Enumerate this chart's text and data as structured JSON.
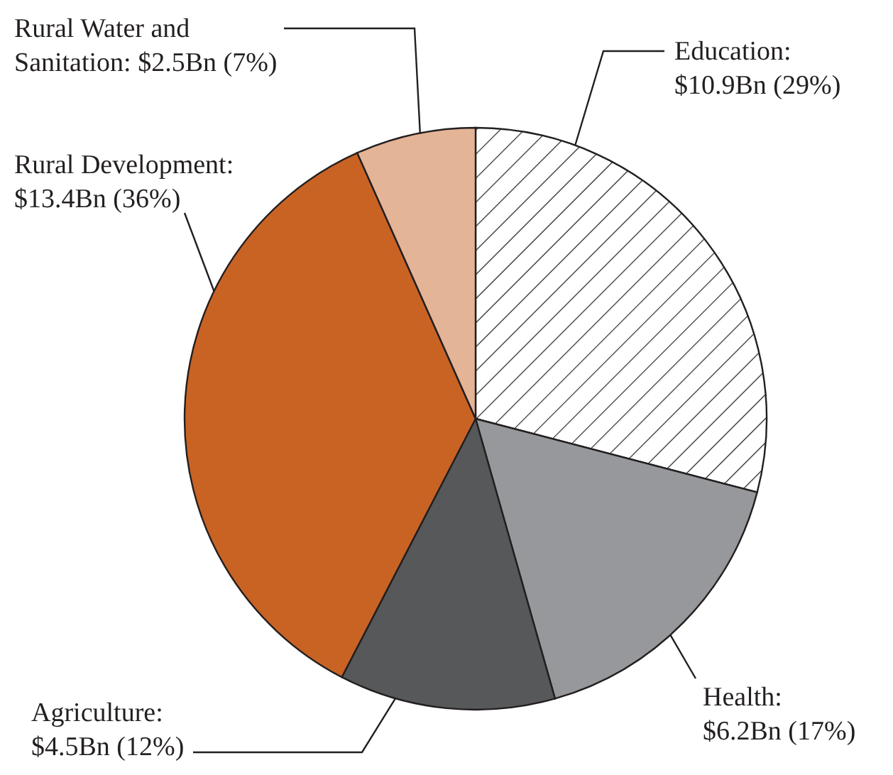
{
  "chart_data": {
    "type": "pie",
    "categories": [
      "Education",
      "Health",
      "Agriculture",
      "Rural Development",
      "Rural Water and Sanitation"
    ],
    "values": [
      10.9,
      6.2,
      4.5,
      13.4,
      2.5
    ],
    "value_labels": [
      ": $10.9Bn (29%)",
      ": $6.2Bn (17%)",
      ": $4.5Bn (12%)",
      ": $13.4Bn (36%)",
      ": $2.5Bn (7%)"
    ],
    "colors": [
      "#ffffff",
      "#97989b",
      "#57585a",
      "#c96324",
      "#e4b496"
    ]
  }
}
